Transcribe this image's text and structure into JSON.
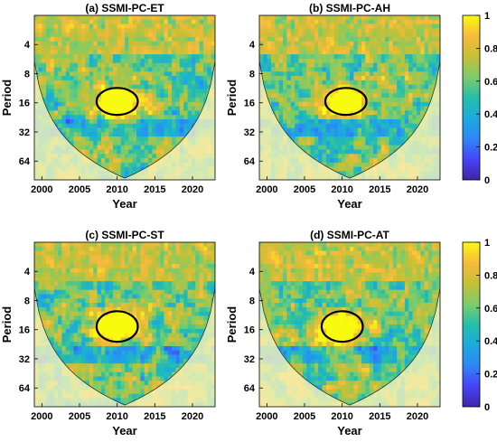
{
  "chart_data": [
    {
      "type": "heatmap",
      "title": "(a) SSMI-PC-ET",
      "xlabel": "Year",
      "ylabel": "Period",
      "x_ticks": [
        2000,
        2005,
        2010,
        2015,
        2020
      ],
      "xlim": [
        1999,
        2023
      ],
      "y_ticks": [
        4,
        8,
        16,
        32,
        64
      ],
      "y_scale": "log2",
      "ylim": [
        2,
        100
      ],
      "coi_center_year": 2011.5,
      "high_coherence_region": {
        "year_range": [
          2007.5,
          2012.5
        ],
        "period_range": [
          12,
          20
        ]
      }
    },
    {
      "type": "heatmap",
      "title": "(b) SSMI-PC-AH",
      "xlabel": "Year",
      "ylabel": "Period",
      "x_ticks": [
        2000,
        2005,
        2010,
        2015,
        2020
      ],
      "xlim": [
        1999,
        2023
      ],
      "y_ticks": [
        4,
        8,
        16,
        32,
        64
      ],
      "y_scale": "log2",
      "ylim": [
        2,
        100
      ],
      "coi_center_year": 2011.5,
      "high_coherence_region": {
        "year_range": [
          2008,
          2013
        ],
        "period_range": [
          12,
          20
        ]
      }
    },
    {
      "type": "heatmap",
      "title": "(c) SSMI-PC-ST",
      "xlabel": "Year",
      "ylabel": "Period",
      "x_ticks": [
        2000,
        2005,
        2010,
        2015,
        2020
      ],
      "xlim": [
        1999,
        2023
      ],
      "y_ticks": [
        4,
        8,
        16,
        32,
        64
      ],
      "y_scale": "log2",
      "ylim": [
        2,
        100
      ],
      "coi_center_year": 2011.5,
      "high_coherence_region": {
        "year_range": [
          2007.5,
          2012.5
        ],
        "period_range": [
          11,
          20
        ]
      }
    },
    {
      "type": "heatmap",
      "title": "(d) SSMI-PC-AT",
      "xlabel": "Year",
      "ylabel": "Period",
      "x_ticks": [
        2000,
        2005,
        2010,
        2015,
        2020
      ],
      "xlim": [
        1999,
        2023
      ],
      "y_ticks": [
        4,
        8,
        16,
        32,
        64
      ],
      "y_scale": "log2",
      "ylim": [
        2,
        100
      ],
      "coi_center_year": 2011.5,
      "high_coherence_region": {
        "year_range": [
          2007.5,
          2012.5
        ],
        "period_range": [
          11,
          20
        ]
      }
    }
  ],
  "colorbar": {
    "ticks": [
      0,
      0.2,
      0.4,
      0.6,
      0.8,
      1
    ],
    "tick_labels": [
      "0",
      "0.2",
      "0.4",
      "0.6",
      "0.8",
      "1"
    ],
    "colormap": "parula",
    "colors": [
      "#3e26a8",
      "#4743f8",
      "#2e87f7",
      "#1caadf",
      "#24bfa9",
      "#7ecc6a",
      "#c5c035",
      "#f8ba3d",
      "#f9fb0e"
    ]
  }
}
